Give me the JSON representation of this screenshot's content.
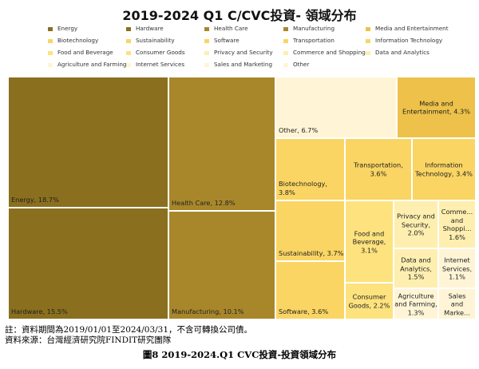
{
  "chart_data": {
    "type": "treemap",
    "title": "2019-2024 Q1 C/CVC投資- 領域分布",
    "unit": "%",
    "legend_placement": "top",
    "categories": [
      {
        "name": "Energy",
        "value": 18.7,
        "label": "Energy, 18.7%",
        "color": "#8a6f1e"
      },
      {
        "name": "Hardware",
        "value": 15.5,
        "label": "Hardware, 15.5%",
        "color": "#8a6f1e"
      },
      {
        "name": "Health Care",
        "value": 12.8,
        "label": "Health Care, 12.8%",
        "color": "#a8872b"
      },
      {
        "name": "Manufacturing",
        "value": 10.1,
        "label": "Manufacturing, 10.1%",
        "color": "#a8872b"
      },
      {
        "name": "Media and Entertainment",
        "value": 4.3,
        "label": "Media and Entertainment, 4.3%",
        "color": "#eec24a"
      },
      {
        "name": "Biotechnology",
        "value": 3.8,
        "label": "Biotechnology, 3.8%",
        "color": "#fad563"
      },
      {
        "name": "Sustainability",
        "value": 3.7,
        "label": "Sustainability, 3.7%",
        "color": "#fad563"
      },
      {
        "name": "Software",
        "value": 3.6,
        "label": "Software, 3.6%",
        "color": "#fad563"
      },
      {
        "name": "Transportation",
        "value": 3.6,
        "label": "Transportation, 3.6%",
        "color": "#fad563"
      },
      {
        "name": "Information Technology",
        "value": 3.4,
        "label": "Information Technology, 3.4%",
        "color": "#fad563"
      },
      {
        "name": "Food and Beverage",
        "value": 3.1,
        "label": "Food and Beverage, 3.1%",
        "color": "#fde27e"
      },
      {
        "name": "Consumer Goods",
        "value": 2.2,
        "label": "Consumer Goods, 2.2%",
        "color": "#fde27e"
      },
      {
        "name": "Privacy and Security",
        "value": 2.0,
        "label": "Privacy and Security, 2.0%",
        "color": "#feefb0"
      },
      {
        "name": "Commerce and Shopping",
        "value": 1.6,
        "label": "Comme... and Shoppi... 1.6%",
        "color": "#feefb0"
      },
      {
        "name": "Data and Analytics",
        "value": 1.5,
        "label": "Data and Analytics, 1.5%",
        "color": "#feefb0"
      },
      {
        "name": "Internet Services",
        "value": 1.1,
        "label": "Internet Services, 1.1%",
        "color": "#fff5d6"
      },
      {
        "name": "Agriculture and Farming",
        "value": 1.3,
        "label": "Agriculture and Farming, 1.3%",
        "color": "#fff5d6"
      },
      {
        "name": "Sales and Marketing",
        "value": null,
        "label": "Sales and Marke...",
        "color": "#fff5d6"
      },
      {
        "name": "Other",
        "value": 6.7,
        "label": "Other, 6.7%",
        "color": "#fff5d6"
      }
    ],
    "legend": [
      {
        "name": "Energy",
        "color": "#8a6f1e"
      },
      {
        "name": "Hardware",
        "color": "#8a6f1e"
      },
      {
        "name": "Health Care",
        "color": "#a8872b"
      },
      {
        "name": "Manufacturing",
        "color": "#a8872b"
      },
      {
        "name": "Media and Entertainment",
        "color": "#eec24a"
      },
      {
        "name": "Biotechnology",
        "color": "#fad563"
      },
      {
        "name": "Sustainability",
        "color": "#fad563"
      },
      {
        "name": "Software",
        "color": "#fad563"
      },
      {
        "name": "Transportation",
        "color": "#fad563"
      },
      {
        "name": "Information Technology",
        "color": "#fad563"
      },
      {
        "name": "Food and Beverage",
        "color": "#fde27e"
      },
      {
        "name": "Consumer Goods",
        "color": "#fde27e"
      },
      {
        "name": "Privacy and Security",
        "color": "#feefb0"
      },
      {
        "name": "Commerce and Shopping",
        "color": "#feefb0"
      },
      {
        "name": "Data and Analytics",
        "color": "#feefb0"
      },
      {
        "name": "Agriculture and Farming",
        "color": "#fff5d6"
      },
      {
        "name": "Internet Services",
        "color": "#fff5d6"
      },
      {
        "name": "Sales and Marketing",
        "color": "#fff5d6"
      },
      {
        "name": "Other",
        "color": "#fff5d6"
      }
    ]
  },
  "footer": {
    "note": "註：資料期間為2019/01/01至2024/03/31，不含可轉換公司債。",
    "source": "資料來源：台灣經濟研究院FINDIT研究團隊"
  },
  "caption": "圖8  2019-2024.Q1 CVC投資-投資領域分布"
}
